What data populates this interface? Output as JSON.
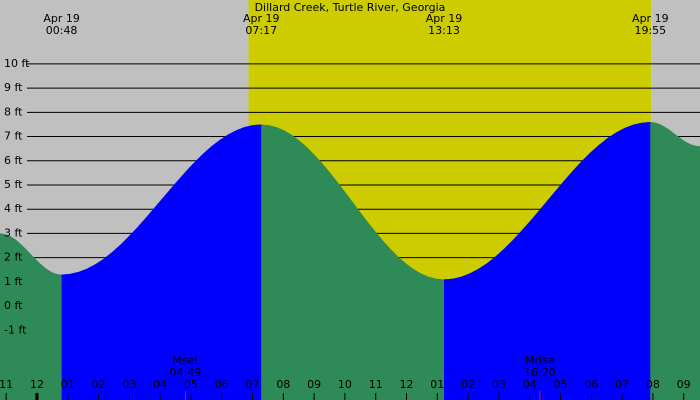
{
  "chart_data": {
    "type": "area",
    "title": "Dillard Creek, Turtle River, Georgia",
    "xlim": [
      -1.2,
      21.53
    ],
    "ylim": [
      -3.88,
      12.64
    ],
    "xticks": [
      {
        "value": -1,
        "label": "11"
      },
      {
        "value": 0,
        "label": "12"
      },
      {
        "value": 1,
        "label": "01"
      },
      {
        "value": 2,
        "label": "02"
      },
      {
        "value": 3,
        "label": "03"
      },
      {
        "value": 4,
        "label": "04"
      },
      {
        "value": 5,
        "label": "05"
      },
      {
        "value": 6,
        "label": "06"
      },
      {
        "value": 7,
        "label": "07"
      },
      {
        "value": 8,
        "label": "08"
      },
      {
        "value": 9,
        "label": "09"
      },
      {
        "value": 10,
        "label": "10"
      },
      {
        "value": 11,
        "label": "11"
      },
      {
        "value": 12,
        "label": "12"
      },
      {
        "value": 13,
        "label": "01"
      },
      {
        "value": 14,
        "label": "02"
      },
      {
        "value": 15,
        "label": "03"
      },
      {
        "value": 16,
        "label": "04"
      },
      {
        "value": 17,
        "label": "05"
      },
      {
        "value": 18,
        "label": "06"
      },
      {
        "value": 19,
        "label": "07"
      },
      {
        "value": 20,
        "label": "08"
      },
      {
        "value": 21,
        "label": "09"
      }
    ],
    "yticks": [
      {
        "value": 10,
        "label": "10 ft"
      },
      {
        "value": 9,
        "label": "9 ft"
      },
      {
        "value": 8,
        "label": "8 ft"
      },
      {
        "value": 7,
        "label": "7 ft"
      },
      {
        "value": 6,
        "label": "6 ft"
      },
      {
        "value": 5,
        "label": "5 ft"
      },
      {
        "value": 4,
        "label": "4 ft"
      },
      {
        "value": 3,
        "label": "3 ft"
      },
      {
        "value": 2,
        "label": "2 ft"
      },
      {
        "value": 1,
        "label": "1 ft"
      },
      {
        "value": 0,
        "label": "0 ft"
      },
      {
        "value": -1,
        "label": "-1 ft"
      }
    ],
    "x": [
      -1.2,
      0.8,
      7.283,
      13.217,
      19.917,
      21.53
    ],
    "dates": [
      null,
      "Apr 19",
      "Apr 19",
      "Apr 19",
      "Apr 19",
      null
    ],
    "times": [
      null,
      "00:48",
      "07:17",
      "13:13",
      "19:55",
      null
    ],
    "series": [
      {
        "values": [
          3.0,
          1.3,
          7.5,
          1.1,
          7.6,
          6.6
        ],
        "color": "#2e8b57",
        "rising_color": "#0000ff"
      }
    ],
    "moon": [
      {
        "label": "Mset",
        "time": "04:49",
        "x": 4.82
      },
      {
        "label": "Mrise",
        "time": "16:20",
        "x": 16.33
      }
    ],
    "daylight": [
      6.87,
      19.95
    ],
    "night_color": "#c0c0c0",
    "day_color": "#cccc00"
  }
}
